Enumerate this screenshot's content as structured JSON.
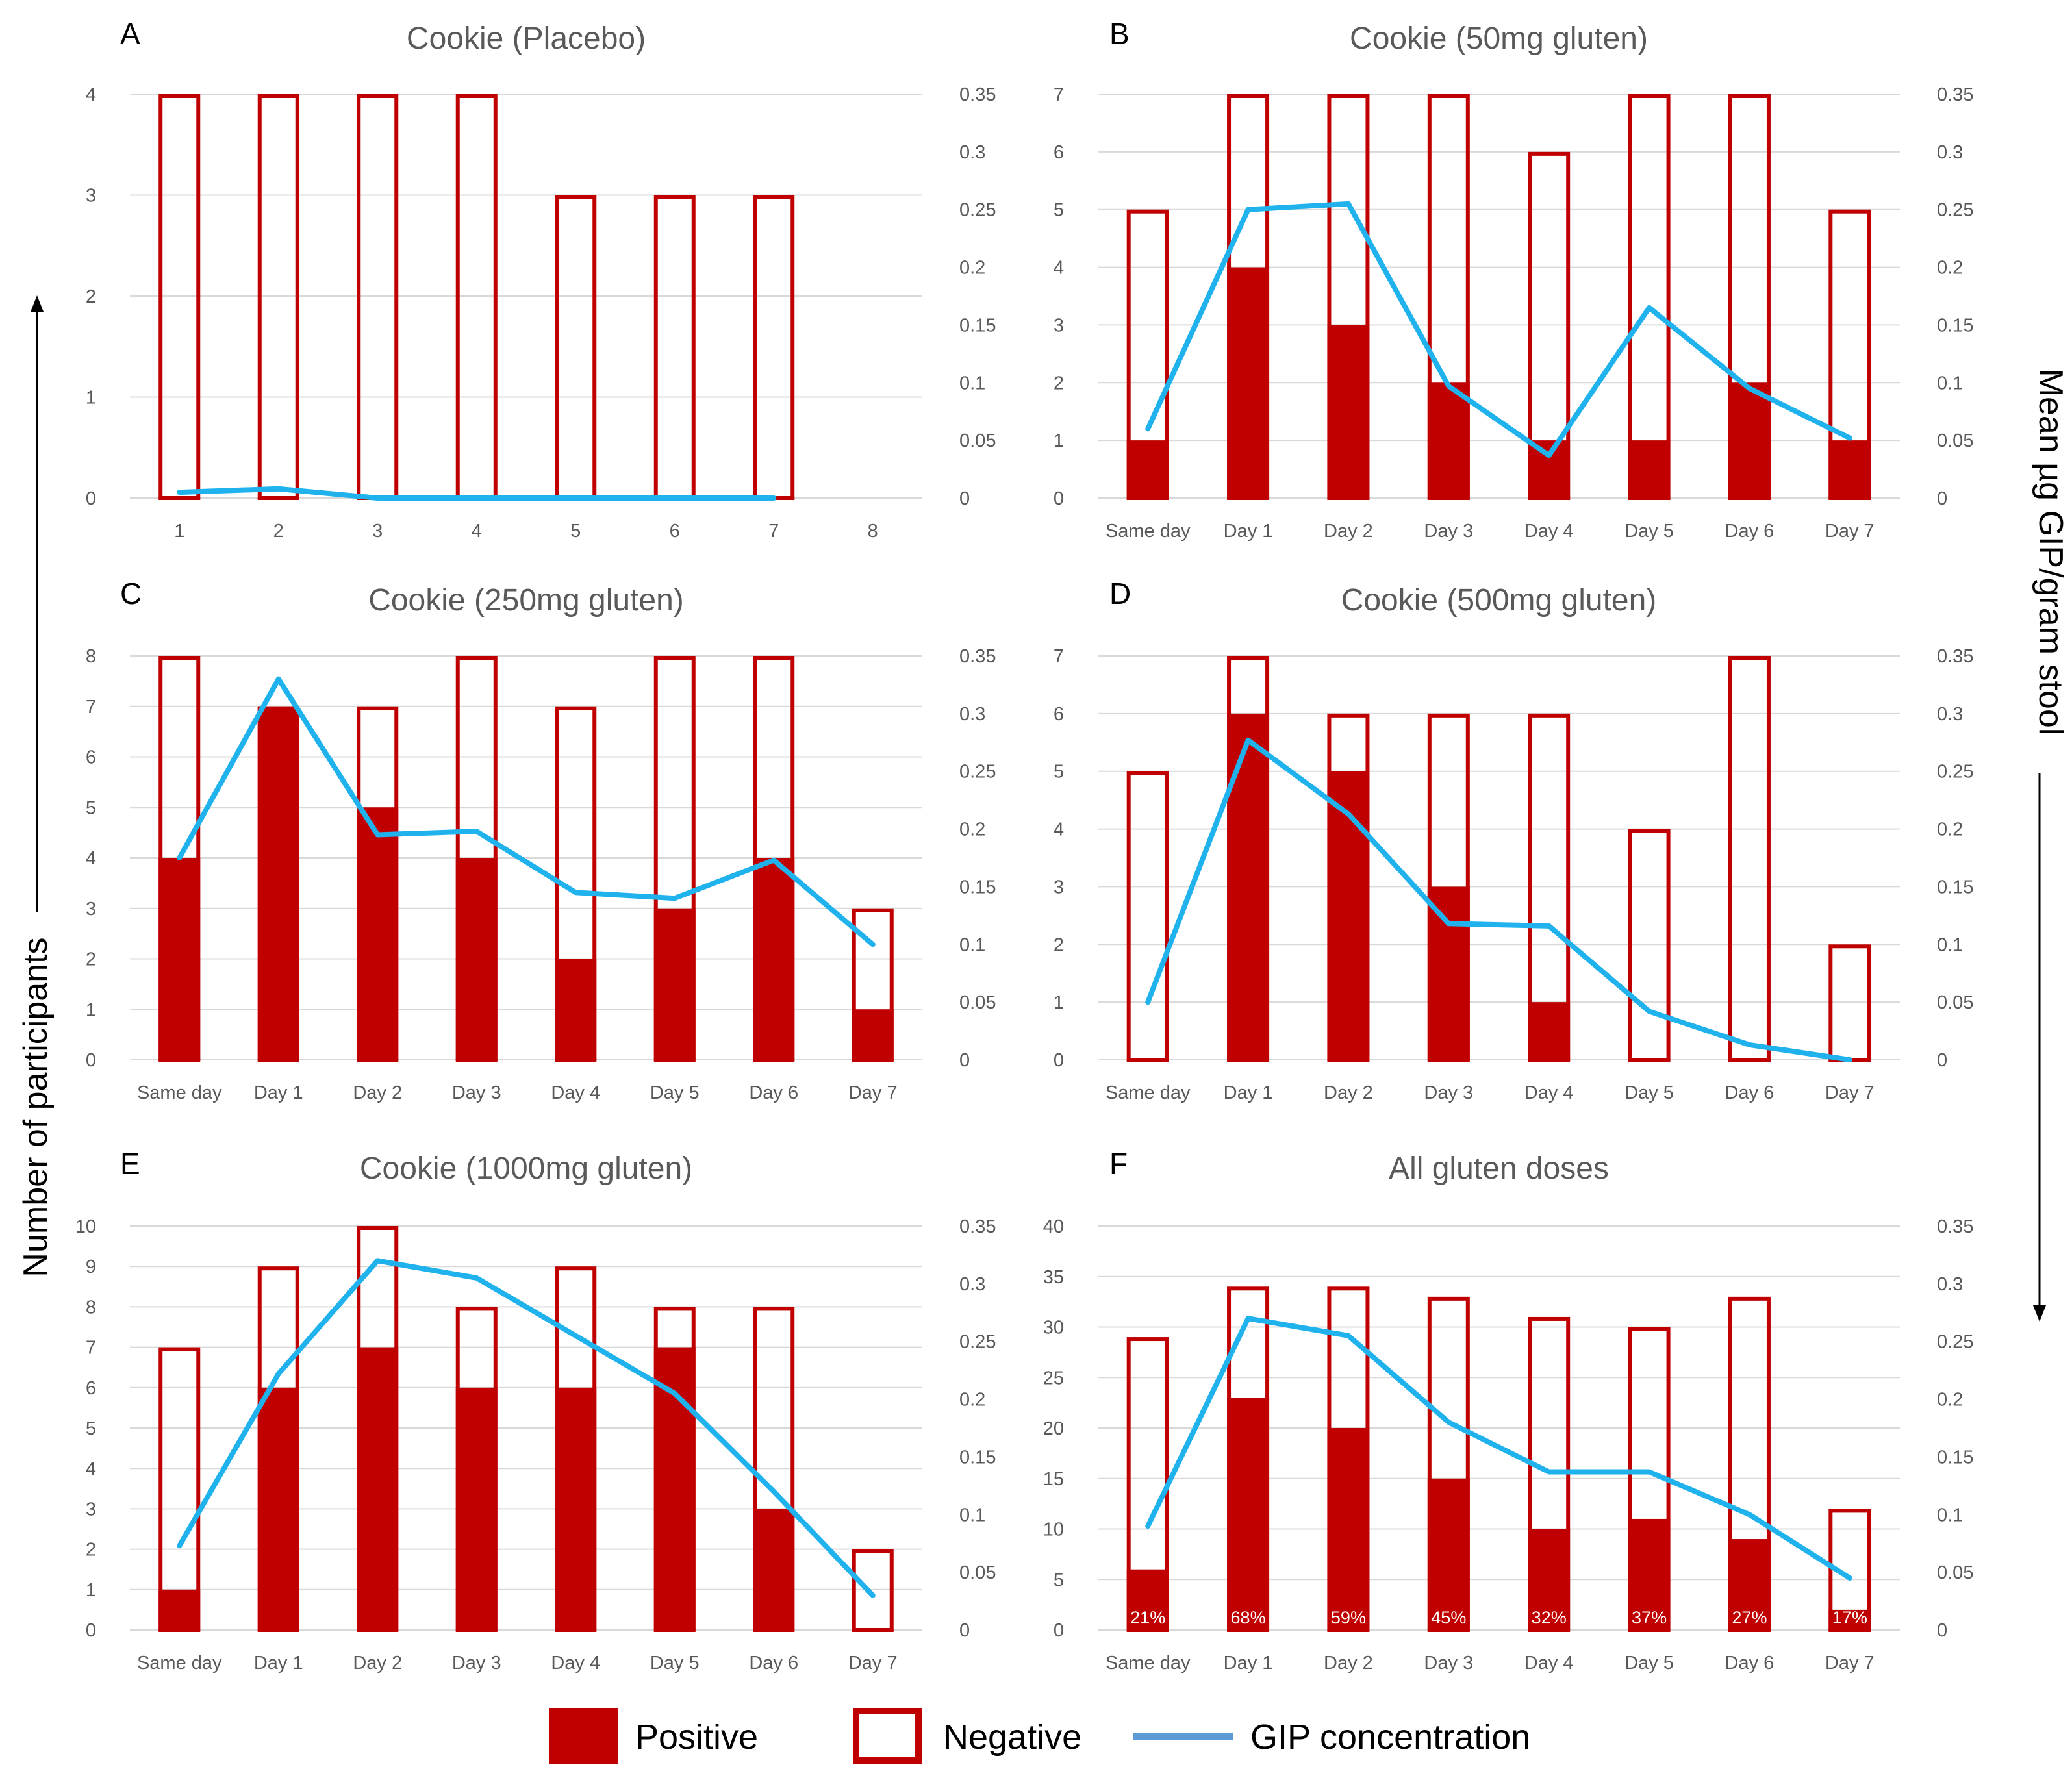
{
  "figure": {
    "y_axis_left_title": "Number of participants",
    "y_axis_right_title": "Mean µg GIP/gram stool",
    "legend": [
      {
        "key": "positive",
        "label": "Positive",
        "color": "#c00000"
      },
      {
        "key": "negative",
        "label": "Negative",
        "color": "#c00000"
      },
      {
        "key": "gip",
        "label": "GIP concentration",
        "color": "#5b9bd5"
      }
    ],
    "colors": {
      "bar": "#c00000",
      "line": "#1fb2ec",
      "grid": "#d9d9d9",
      "text": "#595959"
    }
  },
  "chart_data": [
    {
      "letter": "A",
      "type": "bar",
      "title": "Cookie (Placebo)",
      "categories": [
        "1",
        "2",
        "3",
        "4",
        "5",
        "6",
        "7",
        "8"
      ],
      "total": [
        4,
        4,
        4,
        4,
        3,
        3,
        3,
        null
      ],
      "positive": [
        0,
        0,
        0,
        0,
        0,
        0,
        0,
        null
      ],
      "gip": [
        0.005,
        0.008,
        0,
        0,
        0,
        0,
        0,
        null
      ],
      "ylim_left": [
        0,
        4
      ],
      "ylim_right": [
        0,
        0.35
      ],
      "yticks_left": [
        "0",
        "1",
        "2",
        "3",
        "4"
      ],
      "yticks_right": [
        "0",
        "0.05",
        "0.1",
        "0.15",
        "0.2",
        "0.25",
        "0.3",
        "0.35"
      ]
    },
    {
      "letter": "B",
      "type": "bar",
      "title": "Cookie (50mg gluten)",
      "categories": [
        "Same day",
        "Day 1",
        "Day 2",
        "Day 3",
        "Day 4",
        "Day 5",
        "Day 6",
        "Day 7"
      ],
      "total": [
        5,
        7,
        7,
        7,
        6,
        7,
        7,
        5
      ],
      "positive": [
        1,
        4,
        3,
        2,
        1,
        1,
        2,
        1
      ],
      "gip": [
        0.06,
        0.25,
        0.255,
        0.097,
        0.037,
        0.165,
        0.095,
        0.052
      ],
      "ylim_left": [
        0,
        7
      ],
      "ylim_right": [
        0,
        0.35
      ],
      "yticks_left": [
        "0",
        "1",
        "2",
        "3",
        "4",
        "5",
        "6",
        "7"
      ],
      "yticks_right": [
        "0",
        "0.05",
        "0.1",
        "0.15",
        "0.2",
        "0.25",
        "0.3",
        "0.35"
      ]
    },
    {
      "letter": "C",
      "type": "bar",
      "title": "Cookie (250mg gluten)",
      "categories": [
        "Same day",
        "Day 1",
        "Day 2",
        "Day 3",
        "Day 4",
        "Day 5",
        "Day 6",
        "Day 7"
      ],
      "total": [
        8,
        7,
        7,
        8,
        7,
        8,
        8,
        3
      ],
      "positive": [
        4,
        7,
        5,
        4,
        2,
        3,
        4,
        1
      ],
      "gip": [
        0.175,
        0.33,
        0.195,
        0.198,
        0.145,
        0.14,
        0.173,
        0.1
      ],
      "ylim_left": [
        0,
        8
      ],
      "ylim_right": [
        0,
        0.35
      ],
      "yticks_left": [
        "0",
        "1",
        "2",
        "3",
        "4",
        "5",
        "6",
        "7",
        "8"
      ],
      "yticks_right": [
        "0",
        "0.05",
        "0.1",
        "0.15",
        "0.2",
        "0.25",
        "0.3",
        "0.35"
      ]
    },
    {
      "letter": "D",
      "type": "bar",
      "title": "Cookie (500mg gluten)",
      "categories": [
        "Same day",
        "Day 1",
        "Day 2",
        "Day 3",
        "Day 4",
        "Day 5",
        "Day 6",
        "Day 7"
      ],
      "total": [
        5,
        7,
        6,
        6,
        6,
        4,
        7,
        2
      ],
      "positive": [
        0,
        6,
        5,
        3,
        1,
        0,
        0,
        0
      ],
      "gip": [
        0.05,
        0.277,
        0.213,
        0.118,
        0.116,
        0.042,
        0.013,
        0
      ],
      "ylim_left": [
        0,
        7
      ],
      "ylim_right": [
        0,
        0.35
      ],
      "yticks_left": [
        "0",
        "1",
        "2",
        "3",
        "4",
        "5",
        "6",
        "7"
      ],
      "yticks_right": [
        "0",
        "0.05",
        "0.1",
        "0.15",
        "0.2",
        "0.25",
        "0.3",
        "0.35"
      ]
    },
    {
      "letter": "E",
      "type": "bar",
      "title": "Cookie (1000mg gluten)",
      "categories": [
        "Same day",
        "Day 1",
        "Day 2",
        "Day 3",
        "Day 4",
        "Day 5",
        "Day 6",
        "Day 7"
      ],
      "total": [
        7,
        9,
        10,
        8,
        9,
        8,
        8,
        2
      ],
      "positive": [
        1,
        6,
        7,
        6,
        6,
        7,
        3,
        0
      ],
      "gip": [
        0.073,
        0.222,
        0.32,
        0.305,
        0.255,
        0.205,
        0.12,
        0.03
      ],
      "ylim_left": [
        0,
        10
      ],
      "ylim_right": [
        0,
        0.35
      ],
      "yticks_left": [
        "0",
        "1",
        "2",
        "3",
        "4",
        "5",
        "6",
        "7",
        "8",
        "9",
        "10"
      ],
      "yticks_right": [
        "0",
        "0.05",
        "0.1",
        "0.15",
        "0.2",
        "0.25",
        "0.3",
        "0.35"
      ]
    },
    {
      "letter": "F",
      "type": "bar",
      "title": "All gluten doses",
      "categories": [
        "Same day",
        "Day 1",
        "Day 2",
        "Day 3",
        "Day 4",
        "Day 5",
        "Day 6",
        "Day 7"
      ],
      "total": [
        29,
        34,
        34,
        33,
        31,
        30,
        33,
        12
      ],
      "positive": [
        6,
        23,
        20,
        15,
        10,
        11,
        9,
        2
      ],
      "percent_labels": [
        "21%",
        "68%",
        "59%",
        "45%",
        "32%",
        "37%",
        "27%",
        "17%"
      ],
      "gip": [
        0.09,
        0.27,
        0.255,
        0.18,
        0.137,
        0.137,
        0.1,
        0.045
      ],
      "ylim_left": [
        0,
        40
      ],
      "ylim_right": [
        0,
        0.35
      ],
      "yticks_left": [
        "0",
        "5",
        "10",
        "15",
        "20",
        "25",
        "30",
        "35",
        "40"
      ],
      "yticks_right": [
        "0",
        "0.05",
        "0.1",
        "0.15",
        "0.2",
        "0.25",
        "0.3",
        "0.35"
      ]
    }
  ]
}
